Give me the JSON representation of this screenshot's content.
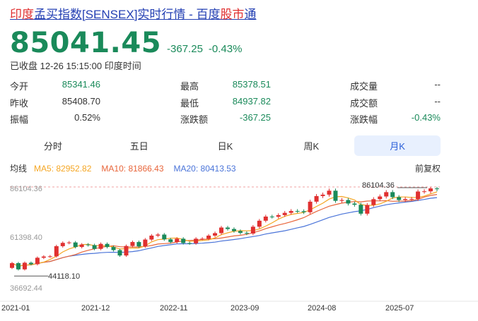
{
  "header": {
    "title_prefix": "印度",
    "title_mid": "孟买指数[SENSEX]实时行情 - 百度",
    "title_hl": "股市",
    "title_suffix": "通"
  },
  "quote": {
    "price": "85041.45",
    "change": "-367.25",
    "change_pct": "-0.43%",
    "status": "已收盘 12-26 15:15:00 印度时间"
  },
  "stats": {
    "open_label": "今开",
    "open": "85341.46",
    "high_label": "最高",
    "high": "85378.51",
    "volume_label": "成交量",
    "volume": "--",
    "prev_label": "昨收",
    "prev": "85408.70",
    "low_label": "最低",
    "low": "84937.82",
    "turnover_label": "成交额",
    "turnover": "--",
    "amp_label": "振幅",
    "amp": "0.52%",
    "chg_amt_label": "涨跌额",
    "chg_amt": "-367.25",
    "chg_pct_label": "涨跌幅",
    "chg_pct": "-0.43%"
  },
  "tabs": [
    "分时",
    "五日",
    "日K",
    "周K",
    "月K"
  ],
  "active_tab": "月K",
  "ma": {
    "label": "均线",
    "ma5": "MA5: 82952.82",
    "ma10": "MA10: 81866.43",
    "ma20": "MA20: 80413.53",
    "adjust": "前复权"
  },
  "colors": {
    "up": "#e03030",
    "down": "#1a8a5a",
    "ma5": "#f5a623",
    "ma10": "#e8653a",
    "ma20": "#4a74d9"
  },
  "chart_data": {
    "type": "candlestick",
    "y_ticks": [
      "86104.36",
      "61398.40",
      "36692.44"
    ],
    "x_ticks": [
      "2021-01",
      "2021-12",
      "2022-11",
      "2023-09",
      "2024-08",
      "2025-07"
    ],
    "max_label": "86104.36",
    "min_label": "44118.10",
    "ylim": [
      36692.44,
      86104.36
    ],
    "candles": [
      [
        47000,
        49300
      ],
      [
        49300,
        46300
      ],
      [
        46300,
        49500
      ],
      [
        49500,
        48800
      ],
      [
        48800,
        51900
      ],
      [
        51900,
        52500
      ],
      [
        52500,
        52600
      ],
      [
        52600,
        57500
      ],
      [
        57500,
        59100
      ],
      [
        59100,
        59300
      ],
      [
        59300,
        57100
      ],
      [
        57100,
        58300
      ],
      [
        58300,
        58000
      ],
      [
        58000,
        56200
      ],
      [
        56200,
        58600
      ],
      [
        58600,
        57100
      ],
      [
        57100,
        55600
      ],
      [
        55600,
        53000
      ],
      [
        53000,
        57600
      ],
      [
        57600,
        59500
      ],
      [
        59500,
        57400
      ],
      [
        57400,
        60700
      ],
      [
        60700,
        62600
      ],
      [
        62600,
        63100
      ],
      [
        63100,
        60800
      ],
      [
        60800,
        59500
      ],
      [
        59500,
        61100
      ],
      [
        61100,
        59000
      ],
      [
        59000,
        58900
      ],
      [
        58900,
        61100
      ],
      [
        61100,
        61100
      ],
      [
        61100,
        62600
      ],
      [
        62600,
        63800
      ],
      [
        63800,
        66500
      ],
      [
        66500,
        65800
      ],
      [
        65800,
        64800
      ],
      [
        64800,
        63900
      ],
      [
        63900,
        63600
      ],
      [
        63600,
        66900
      ],
      [
        66900,
        69800
      ],
      [
        69800,
        71800
      ],
      [
        71800,
        71700
      ],
      [
        71700,
        72500
      ],
      [
        72500,
        73600
      ],
      [
        73600,
        74500
      ],
      [
        74500,
        74400
      ],
      [
        74400,
        73900
      ],
      [
        73900,
        79000
      ],
      [
        79000,
        81700
      ],
      [
        81700,
        82400
      ],
      [
        82400,
        84300
      ],
      [
        84300,
        79400
      ],
      [
        79400,
        79800
      ],
      [
        79800,
        78100
      ],
      [
        78100,
        77500
      ],
      [
        77500,
        73200
      ],
      [
        73200,
        77400
      ],
      [
        77400,
        80200
      ],
      [
        80200,
        81500
      ],
      [
        81500,
        83600
      ],
      [
        83600,
        81200
      ],
      [
        81200,
        79800
      ],
      [
        79800,
        80300
      ],
      [
        80300,
        80300
      ],
      [
        80300,
        83900
      ],
      [
        83900,
        84000
      ],
      [
        84000,
        85400
      ],
      [
        85400,
        85041
      ]
    ]
  }
}
